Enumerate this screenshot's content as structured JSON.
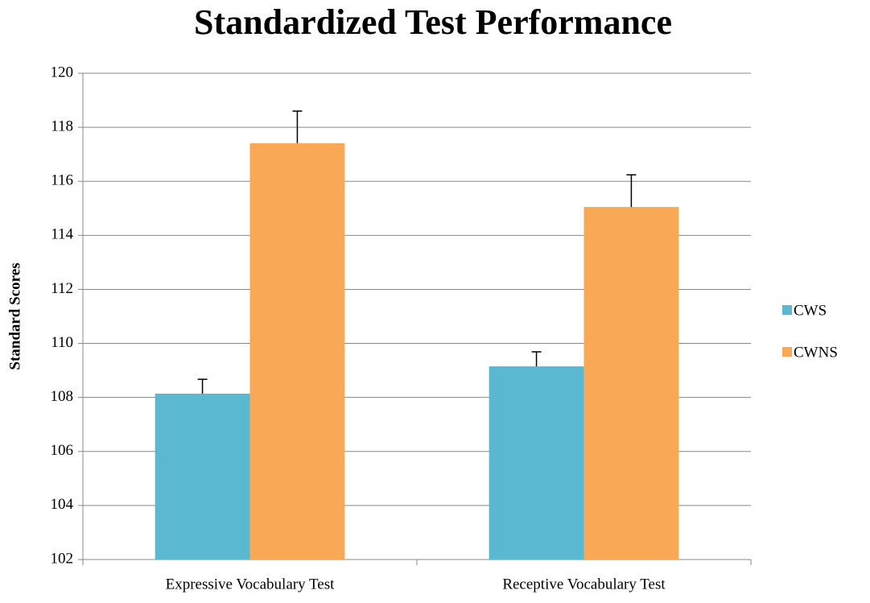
{
  "chart_data": {
    "type": "bar",
    "title": "Standardized Test Performance",
    "ylabel": "Standard Scores",
    "categories": [
      "Expressive Vocabulary Test",
      "Receptive Vocabulary Test"
    ],
    "series": [
      {
        "name": "CWS",
        "color": "#5bb8d1",
        "values": [
          108.14,
          109.15
        ],
        "errors": [
          0.53,
          0.54
        ]
      },
      {
        "name": "CWNS",
        "color": "#f9a855",
        "values": [
          117.41,
          115.05
        ],
        "errors": [
          1.19,
          1.19
        ]
      }
    ],
    "ylim": [
      102,
      120
    ],
    "yticks": [
      102,
      104,
      106,
      108,
      110,
      112,
      114,
      116,
      118,
      120
    ],
    "grid": true,
    "legend": "right"
  }
}
